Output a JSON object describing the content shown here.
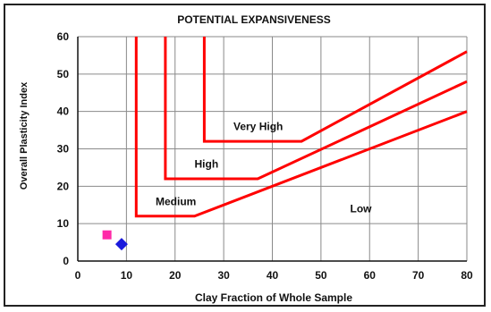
{
  "chart_data": {
    "type": "line",
    "title": "POTENTIAL EXPANSIVENESS",
    "xlabel": "Clay Fraction of Whole Sample",
    "ylabel": "Overall Plasticity Index",
    "xlim": [
      0,
      80
    ],
    "ylim": [
      0,
      60
    ],
    "xticks": [
      0,
      10,
      20,
      30,
      40,
      50,
      60,
      70,
      80
    ],
    "yticks": [
      0,
      10,
      20,
      30,
      40,
      50,
      60
    ],
    "grid": true,
    "line_color": "#ff0000",
    "boundaries": [
      {
        "x": [
          12,
          12,
          24,
          80
        ],
        "y": [
          60,
          12,
          12,
          40
        ]
      },
      {
        "x": [
          18,
          18,
          37,
          80
        ],
        "y": [
          60,
          22,
          22,
          48
        ]
      },
      {
        "x": [
          26,
          26,
          46,
          80
        ],
        "y": [
          60,
          32,
          32,
          56
        ]
      }
    ],
    "zones": [
      {
        "label": "Very High",
        "x": 32,
        "y": 35
      },
      {
        "label": "High",
        "x": 24,
        "y": 25
      },
      {
        "label": "Medium",
        "x": 16,
        "y": 15
      },
      {
        "label": "Low",
        "x": 56,
        "y": 13
      }
    ],
    "points": [
      {
        "x": 6,
        "y": 7,
        "color": "#ff2aa8",
        "marker": "square"
      },
      {
        "x": 9,
        "y": 4.5,
        "color": "#1a1adc",
        "marker": "diamond"
      }
    ]
  }
}
